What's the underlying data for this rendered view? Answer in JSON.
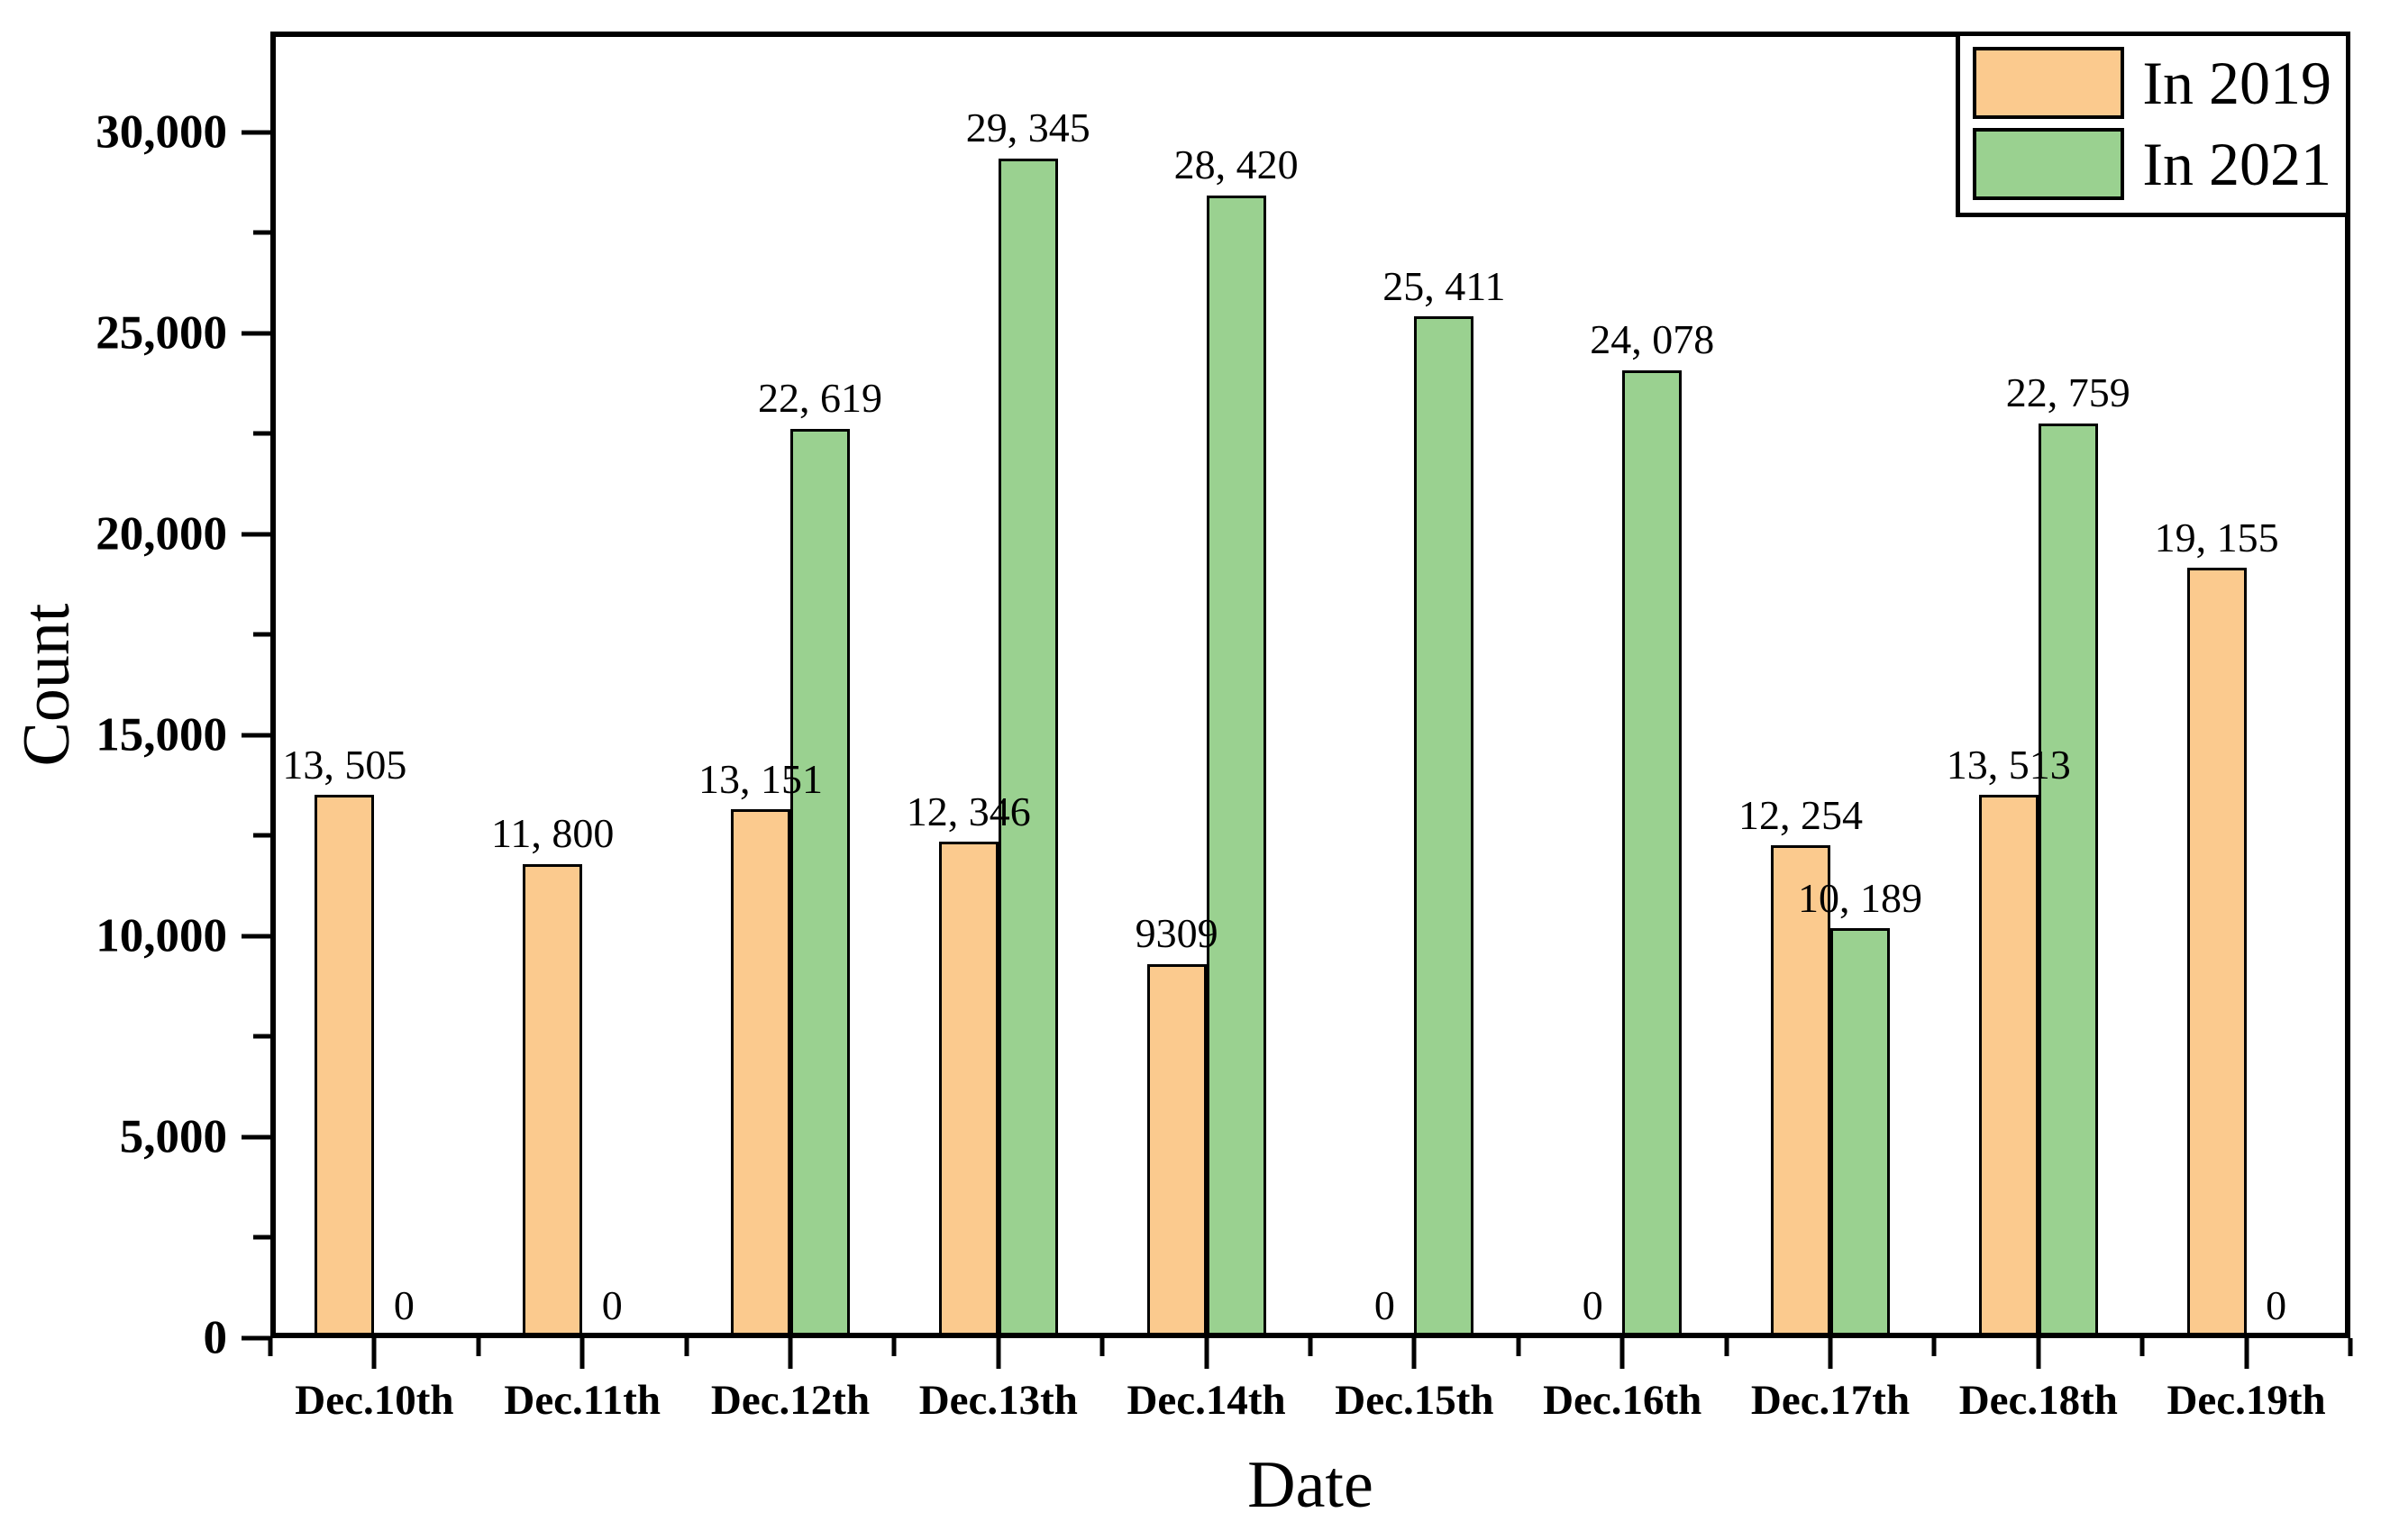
{
  "figure": {
    "background": "#ffffff"
  },
  "legend": {
    "position": "top-right",
    "items": [
      {
        "label": "In 2019",
        "color": "#FBCA8E"
      },
      {
        "label": "In 2021",
        "color": "#9AD190"
      }
    ]
  },
  "axes": {
    "y_title": "Count",
    "x_title": "Date",
    "edge_color": "#000000"
  },
  "chart_data": {
    "type": "bar",
    "title": "",
    "xlabel": "Date",
    "ylabel": "Count",
    "ylim": [
      0,
      32500
    ],
    "grid": false,
    "legend_position": "top-right",
    "bar_edge_color": "#000000",
    "categories": [
      "Dec.10th",
      "Dec.11th",
      "Dec.12th",
      "Dec.13th",
      "Dec.14th",
      "Dec.15th",
      "Dec.16th",
      "Dec.17th",
      "Dec.18th",
      "Dec.19th"
    ],
    "series": [
      {
        "name": "In 2019",
        "color": "#FBCA8E",
        "values": [
          13505,
          11800,
          13151,
          12346,
          9309,
          0,
          0,
          12254,
          13513,
          19155
        ],
        "labels": [
          "13, 505",
          "11, 800",
          "13, 151",
          "12, 346",
          "9309",
          "0",
          "0",
          "12, 254",
          "13, 513",
          "19, 155"
        ]
      },
      {
        "name": "In 2021",
        "color": "#9AD190",
        "values": [
          0,
          0,
          22619,
          29345,
          28420,
          25411,
          24078,
          10189,
          22759,
          0
        ],
        "labels": [
          "0",
          "0",
          "22, 619",
          "29, 345",
          "28, 420",
          "25, 411",
          "24, 078",
          "10, 189",
          "22, 759",
          "0"
        ]
      }
    ],
    "yticks_major": [
      {
        "value": 0,
        "label": "0"
      },
      {
        "value": 5000,
        "label": "5,000"
      },
      {
        "value": 10000,
        "label": "10,000"
      },
      {
        "value": 15000,
        "label": "15,000"
      },
      {
        "value": 20000,
        "label": "20,000"
      },
      {
        "value": 25000,
        "label": "25,000"
      },
      {
        "value": 30000,
        "label": "30,000"
      }
    ],
    "yticks_minor": [
      2500,
      7500,
      12500,
      17500,
      22500,
      27500
    ]
  }
}
